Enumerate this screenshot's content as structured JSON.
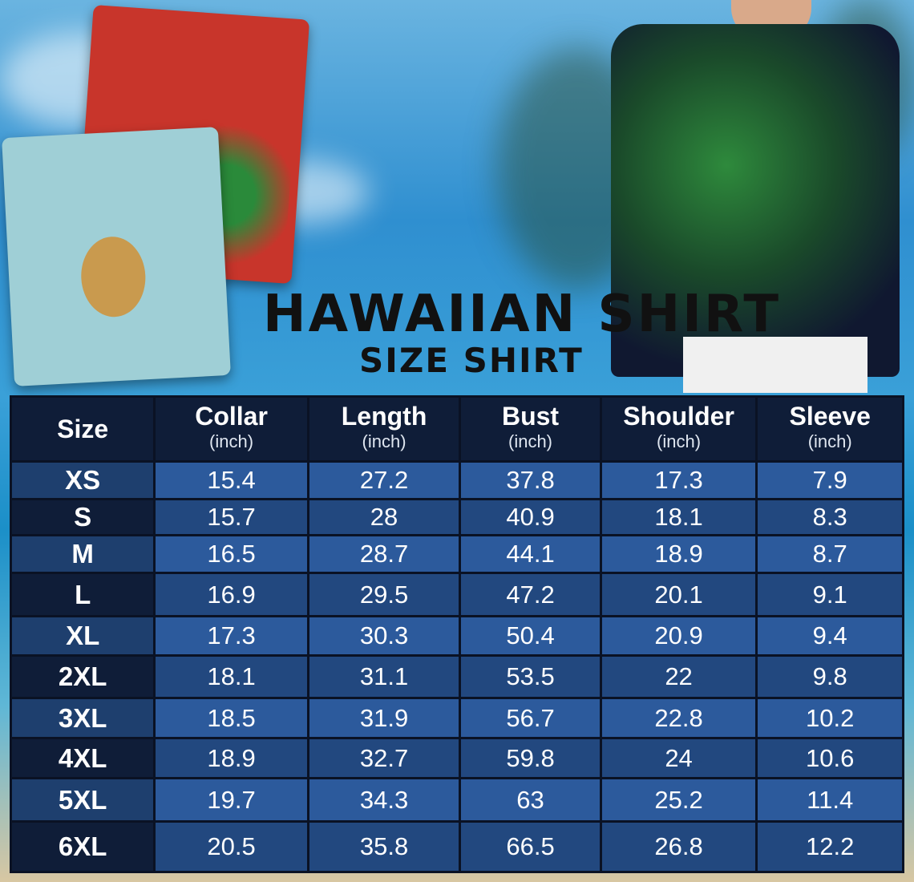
{
  "title": "HAWAIIAN SHIRT",
  "subtitle": "SIZE SHIRT",
  "headers": [
    {
      "label": "Size",
      "unit": ""
    },
    {
      "label": "Collar",
      "unit": "(inch)"
    },
    {
      "label": "Length",
      "unit": "(inch)"
    },
    {
      "label": "Bust",
      "unit": "(inch)"
    },
    {
      "label": "Shoulder",
      "unit": "(inch)"
    },
    {
      "label": "Sleeve",
      "unit": "(inch)"
    }
  ],
  "rows": [
    [
      "XS",
      "15.4",
      "27.2",
      "37.8",
      "17.3",
      "7.9"
    ],
    [
      "S",
      "15.7",
      "28",
      "40.9",
      "18.1",
      "8.3"
    ],
    [
      "M",
      "16.5",
      "28.7",
      "44.1",
      "18.9",
      "8.7"
    ],
    [
      "L",
      "16.9",
      "29.5",
      "47.2",
      "20.1",
      "9.1"
    ],
    [
      "XL",
      "17.3",
      "30.3",
      "50.4",
      "20.9",
      "9.4"
    ],
    [
      "2XL",
      "18.1",
      "31.1",
      "53.5",
      "22",
      "9.8"
    ],
    [
      "3XL",
      "18.5",
      "31.9",
      "56.7",
      "22.8",
      "10.2"
    ],
    [
      "4XL",
      "18.9",
      "32.7",
      "59.8",
      "24",
      "10.6"
    ],
    [
      "5XL",
      "19.7",
      "34.3",
      "63",
      "25.2",
      "11.4"
    ],
    [
      "6XL",
      "20.5",
      "35.8",
      "66.5",
      "26.8",
      "12.2"
    ]
  ]
}
